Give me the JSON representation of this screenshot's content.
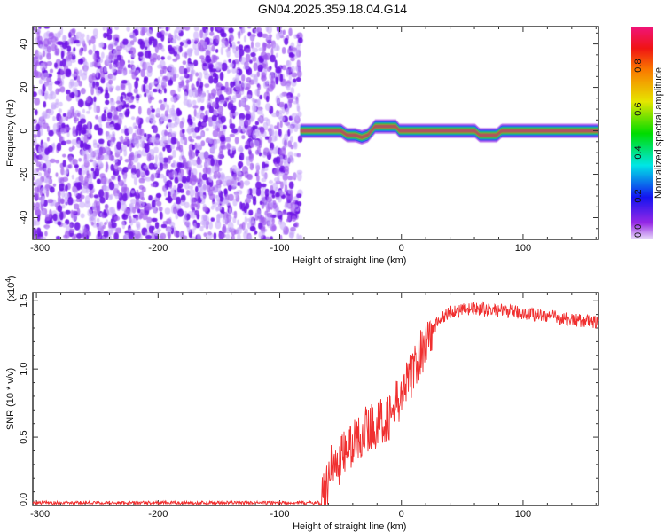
{
  "title": "GN04.2025.359.18.04.G14",
  "chart_data": [
    {
      "type": "heatmap",
      "name": "spectrogram",
      "xlabel": "Height of straight line (km)",
      "ylabel": "Frequency (Hz)",
      "xlim": [
        -303,
        162
      ],
      "ylim": [
        -50,
        48
      ],
      "xticks": [
        -300,
        -200,
        -100,
        0,
        100
      ],
      "yticks": [
        -40,
        -20,
        0,
        20,
        40
      ],
      "noise_region_x": [
        -303,
        -83
      ],
      "ridge": {
        "x": [
          -85,
          -70,
          -50,
          -45,
          -38,
          -33,
          -28,
          -22,
          -5,
          -2,
          55,
          60,
          64,
          78,
          82,
          162
        ],
        "y": [
          0,
          0,
          0,
          -2,
          -2,
          -3,
          -2,
          2,
          2,
          0,
          0,
          0,
          -2,
          -2,
          0,
          0
        ]
      },
      "colorbar": {
        "label": "Normalized spectral amplitude",
        "range": [
          0,
          1
        ],
        "ticks": [
          "0.0",
          "0.2",
          "0.4",
          "0.6",
          "0.8"
        ]
      }
    },
    {
      "type": "line",
      "name": "snr",
      "xlabel": "Height of straight line (km)",
      "ylabel": "SNR (10 * v/v)",
      "y_multiplier": "(x10",
      "y_multiplier_exp": "4",
      "y_multiplier_close": ")",
      "xlim": [
        -303,
        162
      ],
      "ylim": [
        0,
        1.56
      ],
      "xticks": [
        -300,
        -200,
        -100,
        0,
        100
      ],
      "yticks": [
        "0.0",
        "0.5",
        "1.0",
        "1.5"
      ],
      "series": [
        {
          "name": "SNR",
          "color": "#f03030",
          "x": [
            -303,
            -66,
            -62,
            -58,
            -55,
            -50,
            -40,
            -30,
            -20,
            -10,
            0,
            10,
            20,
            30,
            40,
            60,
            80,
            100,
            120,
            140,
            162
          ],
          "y": [
            0.02,
            0.02,
            0.1,
            0.35,
            0.25,
            0.35,
            0.45,
            0.55,
            0.6,
            0.65,
            0.8,
            1.0,
            1.2,
            1.35,
            1.42,
            1.44,
            1.43,
            1.41,
            1.39,
            1.36,
            1.34
          ]
        }
      ]
    }
  ]
}
